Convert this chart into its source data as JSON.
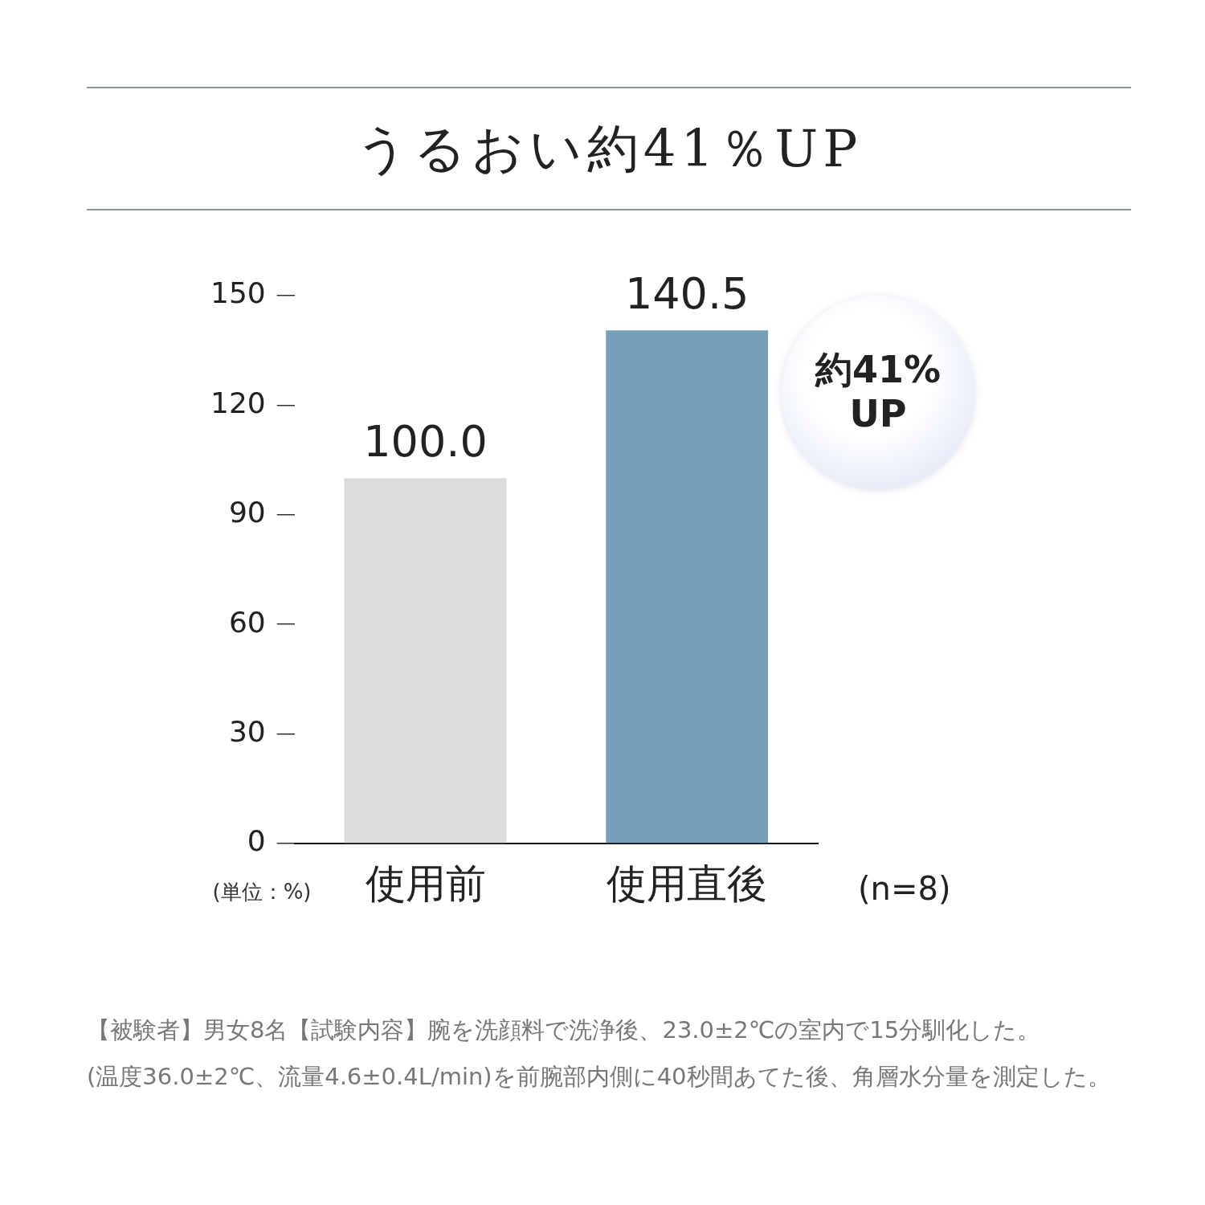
{
  "chart_data": {
    "type": "bar",
    "title": "うるおい約41％UP",
    "ylabel": "(単位：%)",
    "categories": [
      "使用前",
      "使用直後"
    ],
    "values": [
      100.0,
      140.5
    ],
    "colors": [
      "#dcdcdc",
      "#769fb8"
    ],
    "value_labels": [
      "100.0",
      "140.5"
    ],
    "ylim": [
      0,
      150
    ],
    "yticks": [
      0,
      30,
      60,
      90,
      120,
      150
    ],
    "grid": false,
    "legend": false,
    "annotations": [
      "約41% UP",
      "(n=8)",
      "【被験者】男女8名【試験内容】腕を洗顔料で洗浄後、23.0±2℃の室内で15分馴化した。",
      "(温度36.0±2℃、流量4.6±0.4L/min)を前腕部内側に40秒間あてた後、角層水分量を測定した。"
    ]
  }
}
